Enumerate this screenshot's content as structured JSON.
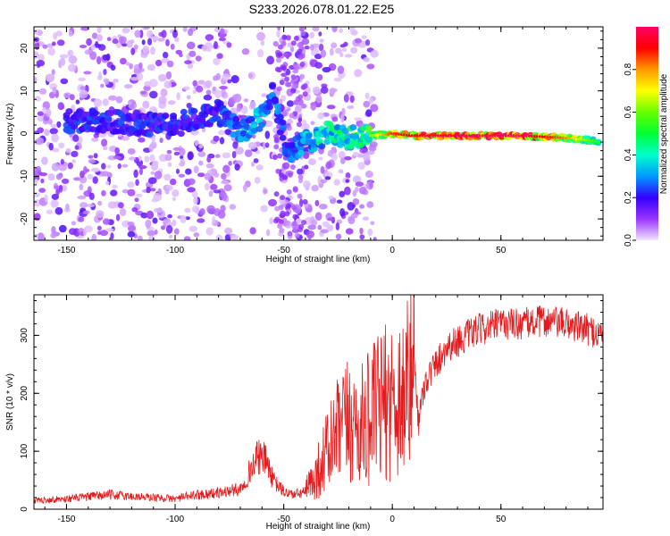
{
  "title": "S233.2026.078.01.22.E25",
  "chart_data": [
    {
      "type": "heatmap",
      "title": "S233.2026.078.01.22.E25",
      "xlabel": "Height of straight line (km)",
      "ylabel": "Frequency (Hz)",
      "xlim": [
        -165,
        97
      ],
      "ylim": [
        -25,
        25
      ],
      "xticks": [
        "-150",
        "-100",
        "-50",
        "0",
        "50"
      ],
      "xtick_values": [
        -150,
        -100,
        -50,
        0,
        50
      ],
      "yticks": [
        "-20",
        "-10",
        "0",
        "10",
        "20"
      ],
      "ytick_values": [
        -20,
        -10,
        0,
        10,
        20
      ],
      "colorbar": {
        "label": "Normalized spectral amplitude",
        "range": [
          0,
          1
        ],
        "ticks": [
          "0.0",
          "0.2",
          "0.4",
          "0.6",
          "0.8"
        ],
        "tick_values": [
          0,
          0.2,
          0.4,
          0.6,
          0.8
        ]
      },
      "tonal_ridge": {
        "x": [
          -140,
          -120,
          -100,
          -80,
          -70,
          -60,
          -55,
          -48,
          -40,
          -30,
          -20,
          -10,
          0,
          10,
          20,
          40,
          60,
          80,
          90,
          95
        ],
        "frequency": [
          3,
          2.5,
          2,
          5,
          0,
          4,
          10,
          -5,
          -2,
          0,
          -1,
          -0.5,
          0,
          -0.5,
          -0.5,
          -0.5,
          -0.5,
          -1,
          -1.5,
          -2
        ],
        "amplitude": [
          0.25,
          0.25,
          0.25,
          0.25,
          0.35,
          0.4,
          0.3,
          0.3,
          0.4,
          0.45,
          0.5,
          0.6,
          0.85,
          0.9,
          0.95,
          0.98,
          0.98,
          0.8,
          0.6,
          0.5
        ]
      }
    },
    {
      "type": "line",
      "xlabel": "Height of straight line (km)",
      "ylabel": "SNR (10 * v/v)",
      "xlim": [
        -165,
        97
      ],
      "ylim": [
        0,
        370
      ],
      "xticks": [
        "-150",
        "-100",
        "-50",
        "0",
        "50"
      ],
      "xtick_values": [
        -150,
        -100,
        -50,
        0,
        50
      ],
      "yticks": [
        "0",
        "100",
        "200",
        "300"
      ],
      "ytick_values": [
        0,
        100,
        200,
        300
      ],
      "series": [
        {
          "name": "SNR",
          "color": "#e41a1c",
          "x": [
            -165,
            -150,
            -130,
            -120,
            -110,
            -100,
            -90,
            -80,
            -70,
            -65,
            -62,
            -58,
            -55,
            -50,
            -45,
            -40,
            -35,
            -30,
            -25,
            -20,
            -15,
            -10,
            -5,
            0,
            5,
            8,
            10,
            12,
            15,
            20,
            25,
            30,
            40,
            50,
            60,
            70,
            80,
            90,
            97
          ],
          "y": [
            15,
            18,
            25,
            22,
            20,
            18,
            25,
            28,
            35,
            70,
            90,
            85,
            50,
            30,
            25,
            30,
            60,
            100,
            130,
            150,
            140,
            160,
            180,
            190,
            200,
            220,
            270,
            150,
            220,
            250,
            280,
            290,
            310,
            320,
            320,
            325,
            320,
            310,
            300
          ]
        }
      ]
    }
  ]
}
